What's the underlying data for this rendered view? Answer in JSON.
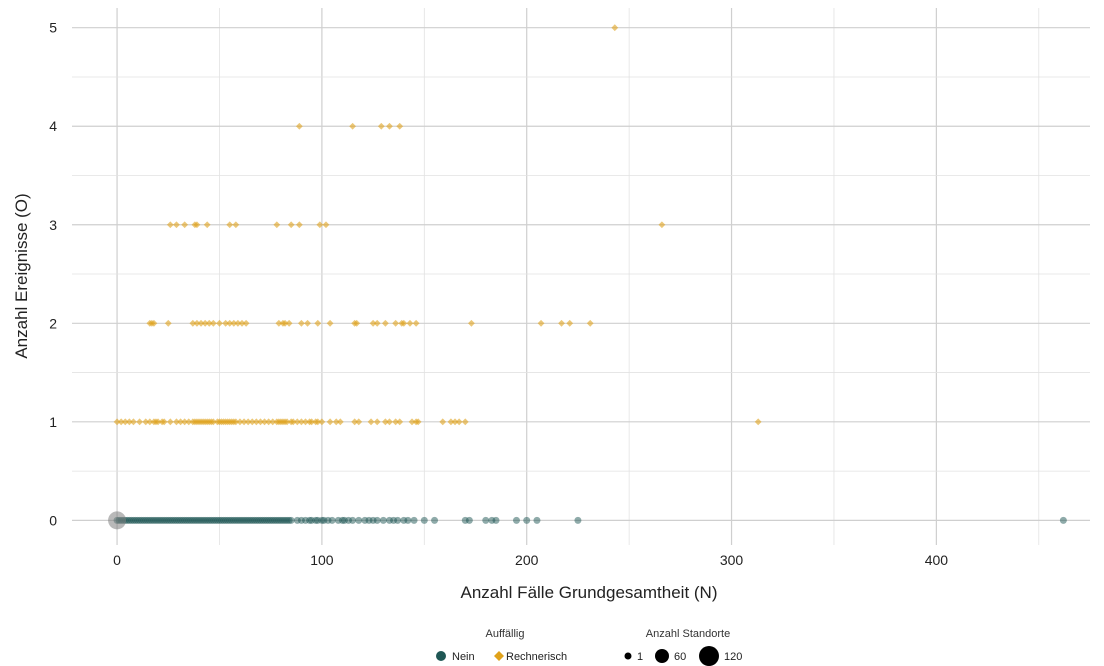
{
  "chart_data": {
    "type": "scatter",
    "xlabel": "Anzahl Fälle Grundgesamtheit (N)",
    "ylabel": "Anzahl Ereignisse (O)",
    "xlim": [
      -22,
      475
    ],
    "ylim": [
      -0.25,
      5.2
    ],
    "x_ticks": [
      0,
      100,
      200,
      300,
      400
    ],
    "y_ticks": [
      0,
      1,
      2,
      3,
      4,
      5
    ],
    "grid": true,
    "colors": {
      "nein": "#1f5755",
      "rechnerisch": "#e0a21b",
      "gray": "#7f7f7f"
    },
    "legend": {
      "placement": "bottom",
      "color_title": "Auffällig",
      "color_entries": [
        {
          "label": "Nein",
          "shape": "circle",
          "color": "#1f5755"
        },
        {
          "label": "Rechnerisch",
          "shape": "diamond",
          "color": "#e0a21b"
        }
      ],
      "size_title": "Anzahl Standorte",
      "size_entries": [
        {
          "label": "1",
          "value": 1
        },
        {
          "label": "60",
          "value": 60
        },
        {
          "label": "120",
          "value": 120
        }
      ]
    },
    "series": [
      {
        "name": "Nein",
        "shape": "circle",
        "color": "#1f5755",
        "y": 0,
        "x": [
          0,
          1,
          2,
          3,
          4,
          5,
          6,
          7,
          8,
          9,
          10,
          11,
          12,
          13,
          14,
          15,
          16,
          17,
          18,
          19,
          20,
          21,
          22,
          23,
          24,
          25,
          26,
          27,
          28,
          29,
          30,
          31,
          32,
          33,
          34,
          35,
          36,
          37,
          38,
          39,
          40,
          41,
          42,
          43,
          44,
          45,
          46,
          47,
          48,
          49,
          50,
          51,
          52,
          53,
          54,
          55,
          56,
          57,
          58,
          59,
          60,
          61,
          62,
          63,
          64,
          65,
          66,
          67,
          68,
          69,
          70,
          71,
          72,
          73,
          74,
          75,
          76,
          77,
          78,
          79,
          80,
          81,
          82,
          83,
          84,
          85,
          88,
          90,
          92,
          94,
          95,
          97,
          98,
          100,
          101,
          103,
          105,
          108,
          110,
          111,
          113,
          115,
          118,
          121,
          123,
          125,
          127,
          130,
          133,
          135,
          137,
          140,
          142,
          145,
          150,
          155,
          170,
          172,
          180,
          183,
          185,
          195,
          200,
          205,
          225,
          462
        ]
      },
      {
        "name": "Rechnerisch",
        "shape": "diamond",
        "color": "#e0a21b",
        "points": [
          [
            243,
            5
          ],
          [
            89,
            4
          ],
          [
            115,
            4
          ],
          [
            129,
            4
          ],
          [
            133,
            4
          ],
          [
            138,
            4
          ],
          [
            26,
            3
          ],
          [
            29,
            3
          ],
          [
            33,
            3
          ],
          [
            38,
            3
          ],
          [
            39,
            3
          ],
          [
            44,
            3
          ],
          [
            55,
            3
          ],
          [
            58,
            3
          ],
          [
            78,
            3
          ],
          [
            85,
            3
          ],
          [
            89,
            3
          ],
          [
            99,
            3
          ],
          [
            102,
            3
          ],
          [
            266,
            3
          ],
          [
            16,
            2
          ],
          [
            17,
            2
          ],
          [
            18,
            2
          ],
          [
            25,
            2
          ],
          [
            37,
            2
          ],
          [
            39,
            2
          ],
          [
            41,
            2
          ],
          [
            43,
            2
          ],
          [
            45,
            2
          ],
          [
            47,
            2
          ],
          [
            50,
            2
          ],
          [
            53,
            2
          ],
          [
            55,
            2
          ],
          [
            57,
            2
          ],
          [
            59,
            2
          ],
          [
            61,
            2
          ],
          [
            63,
            2
          ],
          [
            79,
            2
          ],
          [
            81,
            2
          ],
          [
            82,
            2
          ],
          [
            84,
            2
          ],
          [
            90,
            2
          ],
          [
            93,
            2
          ],
          [
            98,
            2
          ],
          [
            104,
            2
          ],
          [
            116,
            2
          ],
          [
            117,
            2
          ],
          [
            125,
            2
          ],
          [
            127,
            2
          ],
          [
            131,
            2
          ],
          [
            136,
            2
          ],
          [
            139,
            2
          ],
          [
            140,
            2
          ],
          [
            143,
            2
          ],
          [
            146,
            2
          ],
          [
            173,
            2
          ],
          [
            207,
            2
          ],
          [
            217,
            2
          ],
          [
            221,
            2
          ],
          [
            231,
            2
          ],
          [
            0,
            1
          ],
          [
            2,
            1
          ],
          [
            4,
            1
          ],
          [
            6,
            1
          ],
          [
            8,
            1
          ],
          [
            11,
            1
          ],
          [
            14,
            1
          ],
          [
            16,
            1
          ],
          [
            18,
            1
          ],
          [
            19,
            1
          ],
          [
            20,
            1
          ],
          [
            22,
            1
          ],
          [
            23,
            1
          ],
          [
            26,
            1
          ],
          [
            29,
            1
          ],
          [
            31,
            1
          ],
          [
            33,
            1
          ],
          [
            35,
            1
          ],
          [
            37,
            1
          ],
          [
            38,
            1
          ],
          [
            39,
            1
          ],
          [
            40,
            1
          ],
          [
            41,
            1
          ],
          [
            42,
            1
          ],
          [
            43,
            1
          ],
          [
            44,
            1
          ],
          [
            45,
            1
          ],
          [
            46,
            1
          ],
          [
            47,
            1
          ],
          [
            49,
            1
          ],
          [
            50,
            1
          ],
          [
            51,
            1
          ],
          [
            52,
            1
          ],
          [
            53,
            1
          ],
          [
            54,
            1
          ],
          [
            55,
            1
          ],
          [
            56,
            1
          ],
          [
            57,
            1
          ],
          [
            58,
            1
          ],
          [
            60,
            1
          ],
          [
            62,
            1
          ],
          [
            64,
            1
          ],
          [
            66,
            1
          ],
          [
            68,
            1
          ],
          [
            70,
            1
          ],
          [
            72,
            1
          ],
          [
            74,
            1
          ],
          [
            76,
            1
          ],
          [
            78,
            1
          ],
          [
            79,
            1
          ],
          [
            80,
            1
          ],
          [
            81,
            1
          ],
          [
            82,
            1
          ],
          [
            83,
            1
          ],
          [
            85,
            1
          ],
          [
            86,
            1
          ],
          [
            88,
            1
          ],
          [
            90,
            1
          ],
          [
            92,
            1
          ],
          [
            94,
            1
          ],
          [
            95,
            1
          ],
          [
            97,
            1
          ],
          [
            98,
            1
          ],
          [
            100,
            1
          ],
          [
            104,
            1
          ],
          [
            107,
            1
          ],
          [
            109,
            1
          ],
          [
            116,
            1
          ],
          [
            118,
            1
          ],
          [
            124,
            1
          ],
          [
            127,
            1
          ],
          [
            131,
            1
          ],
          [
            133,
            1
          ],
          [
            136,
            1
          ],
          [
            138,
            1
          ],
          [
            144,
            1
          ],
          [
            146,
            1
          ],
          [
            147,
            1
          ],
          [
            159,
            1
          ],
          [
            163,
            1
          ],
          [
            165,
            1
          ],
          [
            167,
            1
          ],
          [
            170,
            1
          ],
          [
            313,
            1
          ]
        ]
      },
      {
        "name": "",
        "shape": "circle",
        "color": "#7f7f7f",
        "points": [
          [
            0,
            0
          ]
        ],
        "size_value": 120
      }
    ]
  }
}
